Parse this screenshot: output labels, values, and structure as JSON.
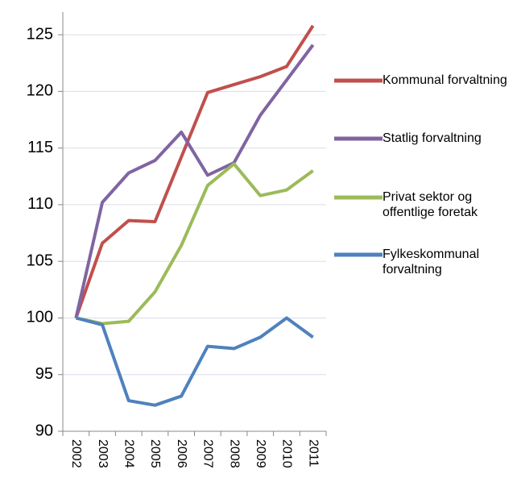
{
  "chart_data": {
    "type": "line",
    "categories": [
      "2002",
      "2003",
      "2004",
      "2005",
      "2006",
      "2007",
      "2008",
      "2009",
      "2010",
      "2011"
    ],
    "series": [
      {
        "name": "Kommunal forvaltning",
        "color": "#c0504d",
        "values": [
          100,
          106.6,
          108.6,
          108.5,
          114.2,
          119.9,
          120.6,
          121.3,
          122.2,
          125.8
        ]
      },
      {
        "name": "Statlig forvaltning",
        "color": "#8064a2",
        "values": [
          100,
          110.2,
          112.8,
          113.9,
          116.4,
          112.6,
          113.7,
          117.9,
          121.0,
          124.1
        ]
      },
      {
        "name": "Privat sektor og offentlige foretak",
        "color": "#9bbb59",
        "values": [
          100,
          99.5,
          99.7,
          102.3,
          106.4,
          111.7,
          113.6,
          110.8,
          111.3,
          113.0
        ]
      },
      {
        "name": "Fylkeskommunal forvaltning",
        "color": "#4f81bd",
        "values": [
          100,
          99.4,
          92.7,
          92.3,
          93.1,
          97.5,
          97.3,
          98.3,
          100.0,
          98.3
        ]
      }
    ],
    "ylim": [
      90,
      127
    ],
    "yticks": [
      90,
      95,
      100,
      105,
      110,
      115,
      120,
      125
    ],
    "grid": true,
    "legend": "right"
  }
}
